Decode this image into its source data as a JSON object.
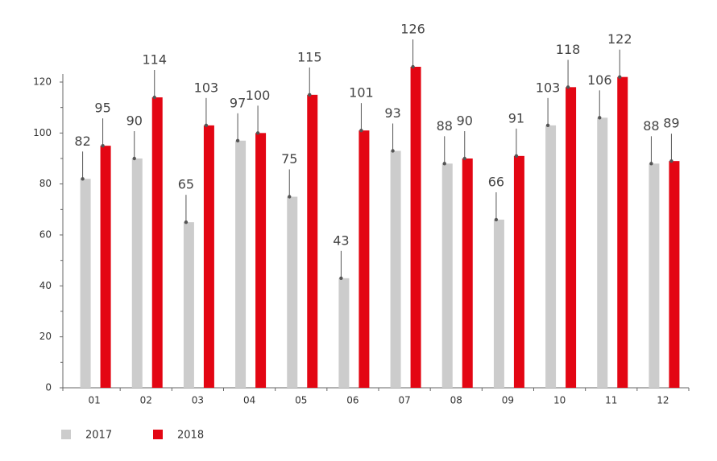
{
  "chart_data": {
    "type": "bar",
    "categories": [
      "01",
      "02",
      "03",
      "04",
      "05",
      "06",
      "07",
      "08",
      "09",
      "10",
      "11",
      "12"
    ],
    "series": [
      {
        "name": "2017",
        "color": "#cccccc",
        "values": [
          82,
          90,
          65,
          97,
          75,
          43,
          93,
          88,
          66,
          103,
          106,
          88
        ]
      },
      {
        "name": "2018",
        "color": "#e30613",
        "values": [
          95,
          114,
          103,
          100,
          115,
          101,
          126,
          90,
          91,
          118,
          122,
          89
        ]
      }
    ],
    "ylim": [
      0,
      120
    ],
    "yticks": [
      0,
      20,
      40,
      60,
      80,
      100,
      120
    ],
    "legend": "bottom-left"
  }
}
